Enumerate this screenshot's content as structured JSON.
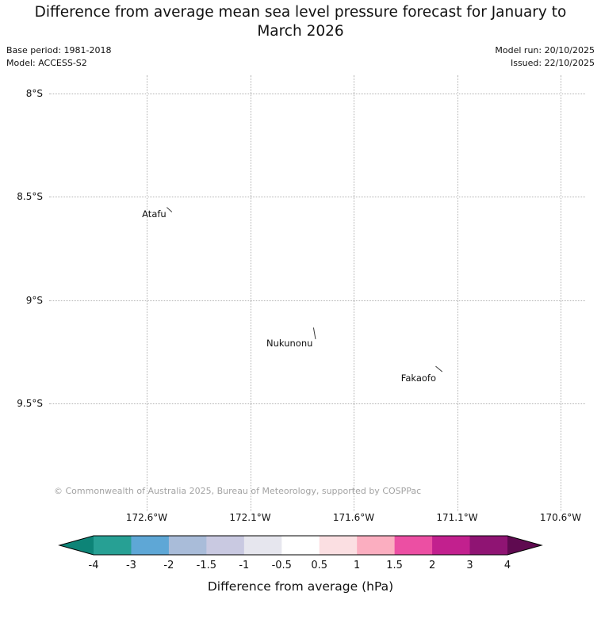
{
  "title": "Difference from average mean sea level pressure forecast for January to March 2026",
  "meta": {
    "base_period": "Base period: 1981-2018",
    "model": "Model: ACCESS-S2",
    "model_run": "Model run: 20/10/2025",
    "issued": "Issued: 22/10/2025"
  },
  "copyright": "© Commonwealth of Australia 2025, Bureau of Meteorology, supported by COSPPac",
  "map": {
    "lat_ticks": [
      {
        "label": "8°S",
        "value": 8
      },
      {
        "label": "8.5°S",
        "value": 8.5
      },
      {
        "label": "9°S",
        "value": 9
      },
      {
        "label": "9.5°S",
        "value": 9.5
      }
    ],
    "lon_ticks": [
      {
        "label": "172.6°W",
        "value": 172.6
      },
      {
        "label": "172.1°W",
        "value": 172.1
      },
      {
        "label": "171.6°W",
        "value": 171.6
      },
      {
        "label": "171.1°W",
        "value": 171.1
      },
      {
        "label": "170.6°W",
        "value": 170.6
      }
    ],
    "places": [
      {
        "name": "Atafu",
        "lat": 8.56,
        "lon_w": 172.49
      },
      {
        "name": "Nukunonu",
        "lat": 9.16,
        "lon_w": 171.79
      },
      {
        "name": "Fakaofo",
        "lat": 9.33,
        "lon_w": 171.19
      }
    ],
    "fill_value": "no difference shading visible (white field)"
  },
  "colorbar": {
    "label": "Difference from average (hPa)",
    "ticks": [
      "-4",
      "-3",
      "-2",
      "-1.5",
      "-1",
      "-0.5",
      "0.5",
      "1",
      "1.5",
      "2",
      "3",
      "4"
    ],
    "segment_colors": [
      "#27a094",
      "#5ea7d6",
      "#a9bcd9",
      "#c9c9e1",
      "#e6e6ee",
      "#ffffff",
      "#fbdfe2",
      "#fbaec0",
      "#ec4fa3",
      "#c2208e",
      "#8f1473"
    ],
    "arrow_left_color": "#0d8477",
    "arrow_right_color": "#5f0a50",
    "outline_color": "#000000"
  }
}
